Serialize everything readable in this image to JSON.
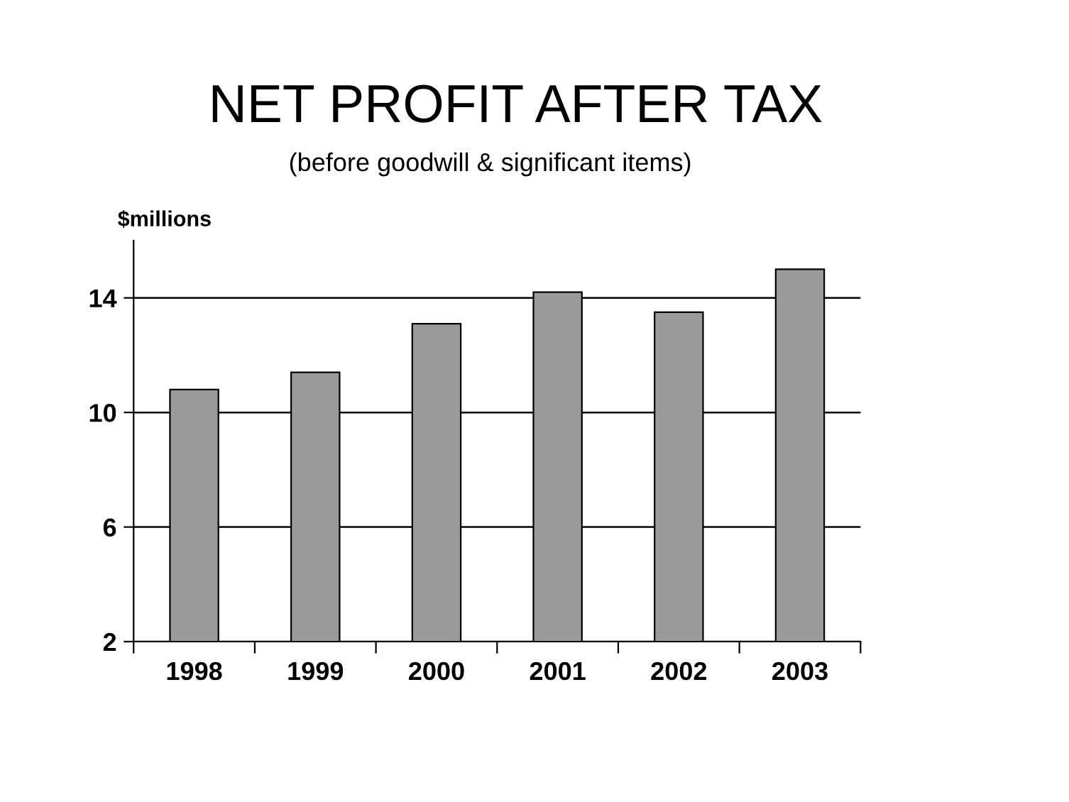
{
  "chart_data": {
    "type": "bar",
    "title": "NET PROFIT AFTER TAX",
    "subtitle": "(before goodwill & significant items)",
    "ylabel": "$millions",
    "categories": [
      "1998",
      "1999",
      "2000",
      "2001",
      "2002",
      "2003"
    ],
    "values": [
      10.8,
      11.4,
      13.1,
      14.2,
      13.5,
      15.0
    ],
    "color": "#9a9a9a",
    "ylim": [
      2,
      16
    ],
    "yticks": [
      2,
      6,
      10,
      14
    ],
    "grid": "y"
  }
}
